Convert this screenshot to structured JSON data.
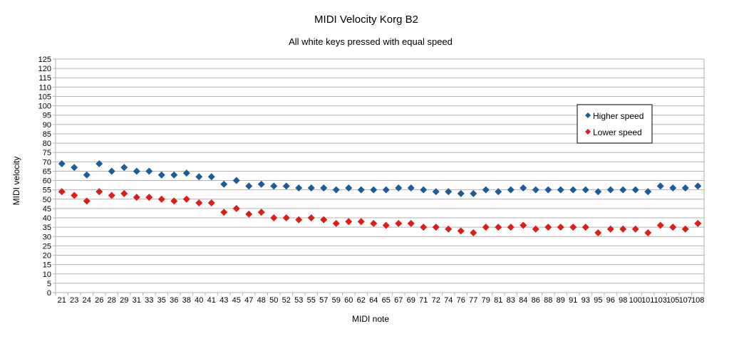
{
  "chart_data": {
    "type": "scatter",
    "title": "MIDI Velocity Korg B2",
    "subtitle": "All white keys pressed with equal speed",
    "xlabel": "MIDI note",
    "ylabel": "MIDI velocity",
    "ylim": [
      0,
      125
    ],
    "ytick_step": 5,
    "grid": true,
    "legend_position": "right",
    "categories": [
      "21",
      "23",
      "24",
      "26",
      "28",
      "29",
      "31",
      "33",
      "35",
      "36",
      "38",
      "40",
      "41",
      "43",
      "45",
      "47",
      "48",
      "50",
      "52",
      "53",
      "55",
      "57",
      "59",
      "60",
      "62",
      "64",
      "65",
      "67",
      "69",
      "71",
      "72",
      "74",
      "76",
      "77",
      "79",
      "81",
      "83",
      "84",
      "86",
      "88",
      "89",
      "91",
      "93",
      "95",
      "96",
      "98",
      "100",
      "101",
      "103",
      "105",
      "107",
      "108"
    ],
    "series": [
      {
        "name": "Higher speed",
        "color": "#1f5b99",
        "values": [
          69,
          67,
          63,
          69,
          65,
          67,
          65,
          65,
          63,
          63,
          64,
          62,
          62,
          58,
          60,
          57,
          58,
          57,
          57,
          56,
          56,
          56,
          55,
          56,
          55,
          55,
          55,
          56,
          56,
          55,
          54,
          54,
          53,
          53,
          55,
          54,
          55,
          56,
          55,
          55,
          55,
          55,
          55,
          54,
          55,
          55,
          55,
          54,
          57,
          56,
          56,
          57
        ]
      },
      {
        "name": "Lower speed",
        "color": "#dd1c1c",
        "values": [
          54,
          52,
          49,
          54,
          52,
          53,
          51,
          51,
          50,
          49,
          50,
          48,
          48,
          43,
          45,
          42,
          43,
          40,
          40,
          39,
          40,
          39,
          37,
          38,
          38,
          37,
          36,
          37,
          37,
          35,
          35,
          34,
          33,
          32,
          35,
          35,
          35,
          36,
          34,
          35,
          35,
          35,
          35,
          32,
          34,
          34,
          34,
          32,
          36,
          35,
          34,
          37
        ]
      }
    ]
  }
}
